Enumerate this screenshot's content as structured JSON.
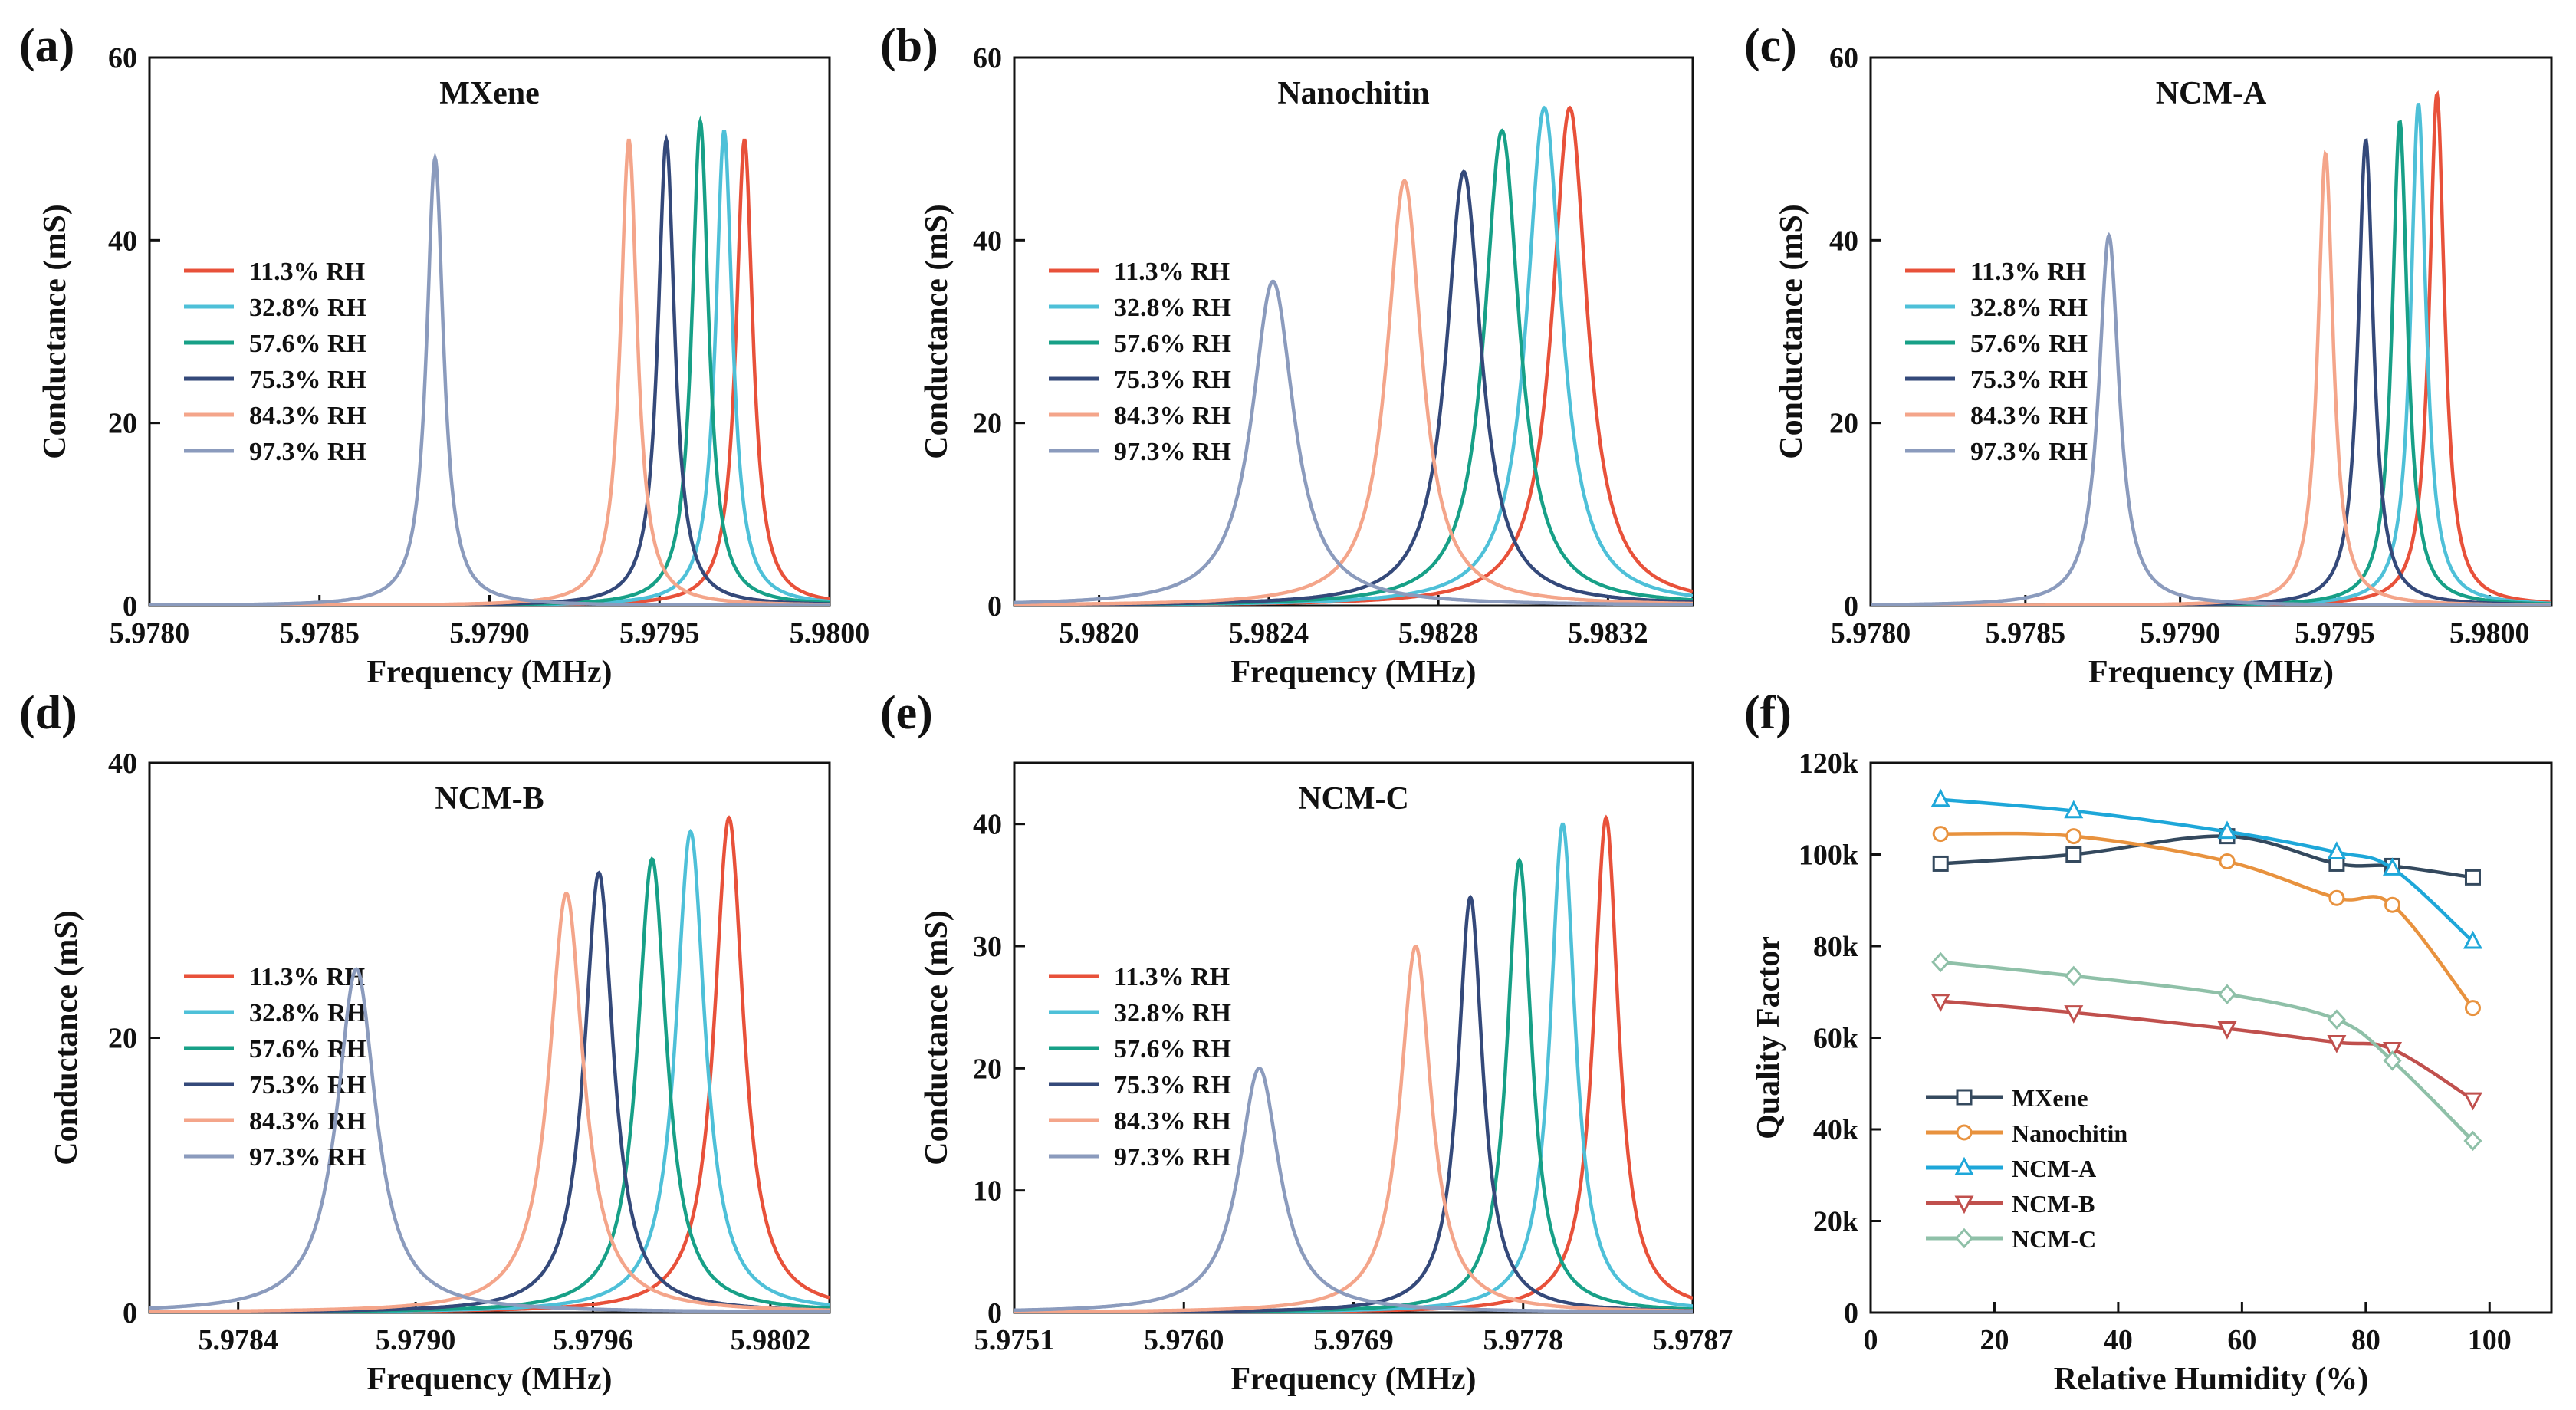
{
  "chart_data": [
    {
      "type": "line",
      "panel_label": "(a)",
      "title": "MXene",
      "xlabel": "Frequency (MHz)",
      "ylabel": "Conductance (mS)",
      "xlim": [
        5.978,
        5.98
      ],
      "ylim": [
        0,
        60
      ],
      "xticks": [
        "5.9780",
        "5.9785",
        "5.9790",
        "5.9795",
        "5.9800"
      ],
      "yticks": [
        "0",
        "20",
        "40",
        "60"
      ],
      "legend_position": "middle-left",
      "series": [
        {
          "name": "11.3% RH",
          "color": "#e8513a",
          "peak_frequency": 5.97975,
          "peak_conductance": 51,
          "half_width": 3e-05
        },
        {
          "name": "32.8% RH",
          "color": "#4ec0d8",
          "peak_frequency": 5.97969,
          "peak_conductance": 52,
          "half_width": 3e-05
        },
        {
          "name": "57.6% RH",
          "color": "#17a087",
          "peak_frequency": 5.97962,
          "peak_conductance": 53,
          "half_width": 3e-05
        },
        {
          "name": "75.3% RH",
          "color": "#34497a",
          "peak_frequency": 5.97952,
          "peak_conductance": 51,
          "half_width": 3e-05
        },
        {
          "name": "84.3% RH",
          "color": "#f4a58a",
          "peak_frequency": 5.97941,
          "peak_conductance": 51,
          "half_width": 3e-05
        },
        {
          "name": "97.3% RH",
          "color": "#8b9bbd",
          "peak_frequency": 5.97884,
          "peak_conductance": 49,
          "half_width": 3e-05
        }
      ]
    },
    {
      "type": "line",
      "panel_label": "(b)",
      "title": "Nanochitin",
      "xlabel": "Frequency (MHz)",
      "ylabel": "Conductance (mS)",
      "xlim": [
        5.9818,
        5.9834
      ],
      "ylim": [
        0,
        60
      ],
      "xticks": [
        "5.9820",
        "5.9824",
        "5.9828",
        "5.9832"
      ],
      "xtick_values": [
        5.982,
        5.9824,
        5.9828,
        5.9832
      ],
      "yticks": [
        "0",
        "20",
        "40",
        "60"
      ],
      "legend_position": "middle-left",
      "series": [
        {
          "name": "11.3% RH",
          "color": "#e8513a",
          "peak_frequency": 5.98311,
          "peak_conductance": 54.5,
          "half_width": 5e-05
        },
        {
          "name": "32.8% RH",
          "color": "#4ec0d8",
          "peak_frequency": 5.98305,
          "peak_conductance": 54.5,
          "half_width": 5e-05
        },
        {
          "name": "57.6% RH",
          "color": "#17a087",
          "peak_frequency": 5.98295,
          "peak_conductance": 52,
          "half_width": 5e-05
        },
        {
          "name": "75.3% RH",
          "color": "#34497a",
          "peak_frequency": 5.98286,
          "peak_conductance": 47.5,
          "half_width": 5e-05
        },
        {
          "name": "84.3% RH",
          "color": "#f4a58a",
          "peak_frequency": 5.98272,
          "peak_conductance": 46.5,
          "half_width": 5e-05
        },
        {
          "name": "97.3% RH",
          "color": "#8b9bbd",
          "peak_frequency": 5.98241,
          "peak_conductance": 35.5,
          "half_width": 6e-05
        }
      ]
    },
    {
      "type": "line",
      "panel_label": "(c)",
      "title": "NCM-A",
      "xlabel": "Frequency (MHz)",
      "ylabel": "Conductance (mS)",
      "xlim": [
        5.978,
        5.9802
      ],
      "ylim": [
        0,
        60
      ],
      "xticks": [
        "5.9780",
        "5.9785",
        "5.9790",
        "5.9795",
        "5.9800"
      ],
      "xtick_values": [
        5.978,
        5.9785,
        5.979,
        5.9795,
        5.98
      ],
      "yticks": [
        "0",
        "20",
        "40",
        "60"
      ],
      "legend_position": "middle-left",
      "series": [
        {
          "name": "11.3% RH",
          "color": "#e8513a",
          "peak_frequency": 5.97983,
          "peak_conductance": 56,
          "half_width": 3e-05
        },
        {
          "name": "32.8% RH",
          "color": "#4ec0d8",
          "peak_frequency": 5.97977,
          "peak_conductance": 55,
          "half_width": 3e-05
        },
        {
          "name": "57.6% RH",
          "color": "#17a087",
          "peak_frequency": 5.97971,
          "peak_conductance": 53,
          "half_width": 3e-05
        },
        {
          "name": "75.3% RH",
          "color": "#34497a",
          "peak_frequency": 5.9796,
          "peak_conductance": 51,
          "half_width": 3e-05
        },
        {
          "name": "84.3% RH",
          "color": "#f4a58a",
          "peak_frequency": 5.97947,
          "peak_conductance": 49.5,
          "half_width": 3e-05
        },
        {
          "name": "97.3% RH",
          "color": "#8b9bbd",
          "peak_frequency": 5.97877,
          "peak_conductance": 40.5,
          "half_width": 4e-05
        }
      ]
    },
    {
      "type": "line",
      "panel_label": "(d)",
      "title": "NCM-B",
      "xlabel": "Frequency (MHz)",
      "ylabel": "Conductance (mS)",
      "xlim": [
        5.9781,
        5.9804
      ],
      "ylim": [
        0,
        40
      ],
      "xticks": [
        "5.9784",
        "5.9790",
        "5.9796",
        "5.9802"
      ],
      "xtick_values": [
        5.9784,
        5.979,
        5.9796,
        5.9802
      ],
      "yticks": [
        "0",
        "20",
        "40"
      ],
      "ytick_values": [
        0,
        20,
        40
      ],
      "legend_position": "middle-left",
      "series": [
        {
          "name": "11.3% RH",
          "color": "#e8513a",
          "peak_frequency": 5.98006,
          "peak_conductance": 36,
          "half_width": 6e-05
        },
        {
          "name": "32.8% RH",
          "color": "#4ec0d8",
          "peak_frequency": 5.97993,
          "peak_conductance": 35,
          "half_width": 6e-05
        },
        {
          "name": "57.6% RH",
          "color": "#17a087",
          "peak_frequency": 5.9798,
          "peak_conductance": 33,
          "half_width": 6e-05
        },
        {
          "name": "75.3% RH",
          "color": "#34497a",
          "peak_frequency": 5.97962,
          "peak_conductance": 32,
          "half_width": 6e-05
        },
        {
          "name": "84.3% RH",
          "color": "#f4a58a",
          "peak_frequency": 5.97951,
          "peak_conductance": 30.5,
          "half_width": 7e-05
        },
        {
          "name": "97.3% RH",
          "color": "#8b9bbd",
          "peak_frequency": 5.9788,
          "peak_conductance": 25,
          "half_width": 8e-05
        }
      ]
    },
    {
      "type": "line",
      "panel_label": "(e)",
      "title": "NCM-C",
      "xlabel": "Frequency (MHz)",
      "ylabel": "Conductance (mS)",
      "xlim": [
        5.9751,
        5.9787
      ],
      "ylim": [
        0,
        45
      ],
      "xticks": [
        "5.9751",
        "5.9760",
        "5.9769",
        "5.9778",
        "5.9787"
      ],
      "xtick_values": [
        5.9751,
        5.976,
        5.9769,
        5.9778,
        5.9787
      ],
      "yticks": [
        "0",
        "10",
        "20",
        "30",
        "40"
      ],
      "ytick_values": [
        0,
        10,
        20,
        30,
        40
      ],
      "legend_position": "middle-left",
      "series": [
        {
          "name": "11.3% RH",
          "color": "#e8513a",
          "peak_frequency": 5.97824,
          "peak_conductance": 40.5,
          "half_width": 8e-05
        },
        {
          "name": "32.8% RH",
          "color": "#4ec0d8",
          "peak_frequency": 5.97801,
          "peak_conductance": 40,
          "half_width": 8e-05
        },
        {
          "name": "57.6% RH",
          "color": "#17a087",
          "peak_frequency": 5.97778,
          "peak_conductance": 37,
          "half_width": 8e-05
        },
        {
          "name": "75.3% RH",
          "color": "#34497a",
          "peak_frequency": 5.97752,
          "peak_conductance": 34,
          "half_width": 8e-05
        },
        {
          "name": "84.3% RH",
          "color": "#f4a58a",
          "peak_frequency": 5.97723,
          "peak_conductance": 30,
          "half_width": 0.0001
        },
        {
          "name": "97.3% RH",
          "color": "#8b9bbd",
          "peak_frequency": 5.9764,
          "peak_conductance": 20,
          "half_width": 0.00013
        }
      ]
    },
    {
      "type": "line",
      "panel_label": "(f)",
      "title": "",
      "xlabel": "Relative Humidity (%)",
      "ylabel": "Quality Factor",
      "xlim": [
        0,
        110
      ],
      "ylim": [
        0,
        120000
      ],
      "xticks": [
        "0",
        "20",
        "40",
        "60",
        "80",
        "100"
      ],
      "xtick_values": [
        0,
        20,
        40,
        60,
        80,
        100
      ],
      "yticks": [
        "0",
        "20k",
        "40k",
        "60k",
        "80k",
        "100k",
        "120k"
      ],
      "ytick_values": [
        0,
        20000,
        40000,
        60000,
        80000,
        100000,
        120000
      ],
      "legend_position": "bottom-left",
      "x": [
        11.3,
        32.8,
        57.6,
        75.3,
        84.3,
        97.3
      ],
      "series": [
        {
          "name": "MXene",
          "color": "#34495e",
          "marker": "square",
          "values": [
            98000,
            100000,
            104000,
            98000,
            97500,
            95000
          ]
        },
        {
          "name": "Nanochitin",
          "color": "#e8923e",
          "marker": "circle",
          "values": [
            104500,
            104000,
            98500,
            90500,
            89000,
            66500
          ]
        },
        {
          "name": "NCM-A",
          "color": "#1ea7d9",
          "marker": "triangle-up",
          "values": [
            112000,
            109500,
            105000,
            100500,
            97000,
            81000
          ]
        },
        {
          "name": "NCM-B",
          "color": "#c0504d",
          "marker": "triangle-down",
          "values": [
            68000,
            65500,
            62000,
            59000,
            57500,
            46500
          ]
        },
        {
          "name": "NCM-C",
          "color": "#8fc0a8",
          "marker": "diamond",
          "values": [
            76500,
            73500,
            69500,
            64000,
            55000,
            37500
          ]
        }
      ]
    }
  ]
}
